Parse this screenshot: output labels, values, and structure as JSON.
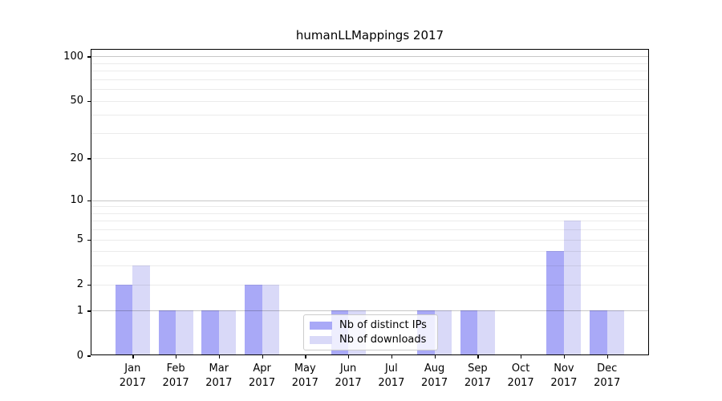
{
  "title": "humanLLMappings 2017",
  "chart_data": {
    "type": "bar",
    "title": "humanLLMappings 2017",
    "categories": [
      "Jan",
      "Feb",
      "Mar",
      "Apr",
      "May",
      "Jun",
      "Jul",
      "Aug",
      "Sep",
      "Oct",
      "Nov",
      "Dec"
    ],
    "category_year": "2017",
    "series": [
      {
        "name": "Nb of distinct IPs",
        "color": "#a9a9f7",
        "values": [
          2,
          1,
          1,
          2,
          0,
          1,
          0,
          1,
          1,
          0,
          4,
          1
        ]
      },
      {
        "name": "Nb of downloads",
        "color": "#d9d9f8",
        "values": [
          3,
          1,
          1,
          2,
          0,
          1,
          0,
          1,
          1,
          0,
          7,
          1
        ]
      }
    ],
    "xlabel": "",
    "ylabel": "",
    "yscale": "log1p",
    "ylim": [
      0,
      112
    ],
    "yticks": [
      0,
      1,
      2,
      5,
      10,
      20,
      50,
      100
    ],
    "major_gridlines": [
      1,
      10,
      100
    ],
    "minor_gridlines": [
      2,
      3,
      4,
      5,
      6,
      7,
      8,
      9,
      20,
      30,
      40,
      50,
      60,
      70,
      80,
      90
    ],
    "grid": true,
    "legend_position": "lower center"
  }
}
